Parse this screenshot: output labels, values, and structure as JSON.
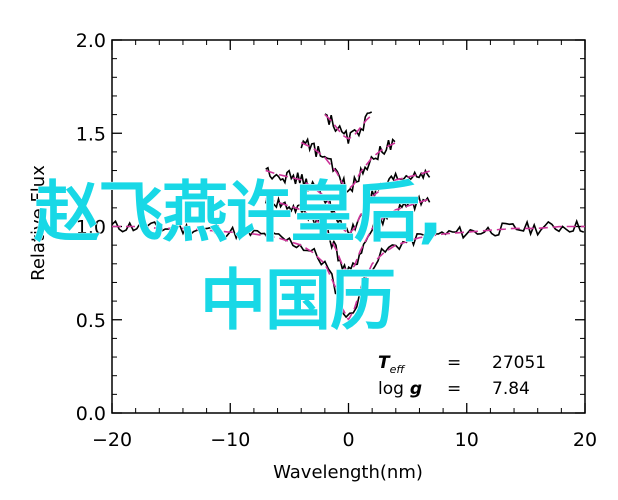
{
  "chart_data": {
    "type": "line",
    "title": "",
    "xlabel": "Wavelength(nm)",
    "ylabel": "Relative Flux",
    "xlim": [
      -20,
      20
    ],
    "ylim": [
      0.0,
      2.0
    ],
    "xticks": [
      "-20",
      "-10",
      "0",
      "10",
      "20"
    ],
    "yticks": [
      "0.0",
      "0.5",
      "1.0",
      "1.5",
      "2.0"
    ],
    "grid": false,
    "colors": {
      "observed": "#000000",
      "model": "#cc3399"
    },
    "series": [
      {
        "offset": 0.0,
        "x": [
          -20,
          -18,
          -16,
          -14,
          -12,
          -10,
          -8,
          -6,
          -4,
          -3,
          -2,
          -1,
          -0.5,
          0,
          0.5,
          1,
          2,
          3,
          4,
          6,
          8,
          10,
          12,
          14,
          16,
          18,
          20
        ],
        "y": [
          1.0,
          1.0,
          0.99,
          0.99,
          0.98,
          0.97,
          0.96,
          0.94,
          0.9,
          0.86,
          0.8,
          0.66,
          0.56,
          0.5,
          0.56,
          0.66,
          0.8,
          0.86,
          0.9,
          0.94,
          0.96,
          0.97,
          0.98,
          0.99,
          0.99,
          1.0,
          1.0
        ]
      },
      {
        "offset": 0.15,
        "x": [
          -7,
          -6,
          -4,
          -3,
          -2,
          -1,
          -0.5,
          0,
          0.5,
          1,
          2,
          3,
          4,
          6,
          7
        ],
        "y": [
          1.0,
          0.98,
          0.94,
          0.9,
          0.84,
          0.72,
          0.64,
          0.6,
          0.64,
          0.72,
          0.84,
          0.9,
          0.94,
          0.98,
          1.0
        ]
      },
      {
        "offset": 0.3,
        "x": [
          -7,
          -6,
          -4,
          -3,
          -2,
          -1,
          -0.5,
          0,
          0.5,
          1,
          2,
          3,
          4,
          6,
          7
        ],
        "y": [
          1.0,
          0.98,
          0.95,
          0.91,
          0.86,
          0.76,
          0.69,
          0.66,
          0.69,
          0.76,
          0.86,
          0.91,
          0.95,
          0.98,
          1.0
        ]
      },
      {
        "offset": 0.45,
        "x": [
          -4,
          -3,
          -2,
          -1,
          -0.5,
          0,
          0.5,
          1,
          2,
          3,
          4
        ],
        "y": [
          1.0,
          0.97,
          0.92,
          0.84,
          0.78,
          0.75,
          0.78,
          0.84,
          0.92,
          0.97,
          1.0
        ]
      },
      {
        "offset": 0.6,
        "x": [
          -2,
          -1.5,
          -1,
          -0.5,
          0,
          0.5,
          1,
          1.5,
          2
        ],
        "y": [
          1.0,
          0.97,
          0.93,
          0.89,
          0.87,
          0.89,
          0.93,
          0.97,
          1.0
        ]
      }
    ],
    "annotations": [
      {
        "label": "T",
        "sub": "eff",
        "eq": "=",
        "value": "27051"
      },
      {
        "label": "log",
        "italic": "g",
        "eq": "=",
        "value": "7.84"
      }
    ]
  },
  "overlay": {
    "line1": "赵飞燕许皇后,",
    "line2": "中国历"
  }
}
